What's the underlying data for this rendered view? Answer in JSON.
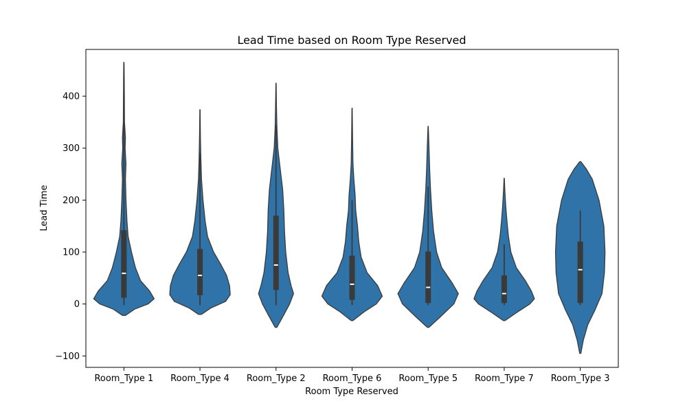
{
  "chart_data": {
    "type": "violin",
    "title": "Lead Time based on Room Type Reserved",
    "xlabel": "Room Type Reserved",
    "ylabel": "Lead Time",
    "ylim": [
      -122,
      490
    ],
    "yticks": [
      -100,
      0,
      100,
      200,
      300,
      400
    ],
    "grid": false,
    "colors": {
      "violin_fill": "#2f73a8",
      "violin_edge": "#3a3a3a",
      "box": "#3a3a3a",
      "median": "#ffffff"
    },
    "categories": [
      "Room_Type 1",
      "Room_Type 4",
      "Room_Type 2",
      "Room_Type 6",
      "Room_Type 5",
      "Room_Type 7",
      "Room_Type 3"
    ],
    "violins": [
      {
        "category": "Room_Type 1",
        "min": -22,
        "max": 465,
        "q1": 12,
        "median": 59,
        "q3": 142,
        "whisker_low": -2,
        "whisker_high": 400,
        "profile": [
          [
            -22,
            0.05
          ],
          [
            -10,
            0.35
          ],
          [
            0,
            0.8
          ],
          [
            10,
            1.0
          ],
          [
            25,
            0.85
          ],
          [
            45,
            0.55
          ],
          [
            70,
            0.38
          ],
          [
            100,
            0.25
          ],
          [
            130,
            0.14
          ],
          [
            160,
            0.1
          ],
          [
            200,
            0.07
          ],
          [
            240,
            0.05
          ],
          [
            270,
            0.07
          ],
          [
            300,
            0.04
          ],
          [
            320,
            0.05
          ],
          [
            350,
            0.02
          ],
          [
            400,
            0.015
          ],
          [
            440,
            0.01
          ],
          [
            465,
            0.005
          ]
        ]
      },
      {
        "category": "Room_Type 4",
        "min": -20,
        "max": 374,
        "q1": 17,
        "median": 55,
        "q3": 106,
        "whisker_low": -2,
        "whisker_high": 290,
        "profile": [
          [
            -20,
            0.05
          ],
          [
            -8,
            0.35
          ],
          [
            5,
            0.85
          ],
          [
            18,
            1.0
          ],
          [
            35,
            0.98
          ],
          [
            55,
            0.88
          ],
          [
            75,
            0.7
          ],
          [
            100,
            0.45
          ],
          [
            130,
            0.25
          ],
          [
            160,
            0.17
          ],
          [
            200,
            0.1
          ],
          [
            240,
            0.05
          ],
          [
            280,
            0.03
          ],
          [
            320,
            0.015
          ],
          [
            374,
            0.005
          ]
        ]
      },
      {
        "category": "Room_Type 2",
        "min": -45,
        "max": 425,
        "q1": 27,
        "median": 75,
        "q3": 170,
        "whisker_low": -2,
        "whisker_high": 345,
        "profile": [
          [
            -45,
            0.03
          ],
          [
            -25,
            0.22
          ],
          [
            0,
            0.45
          ],
          [
            20,
            0.58
          ],
          [
            35,
            0.5
          ],
          [
            60,
            0.4
          ],
          [
            100,
            0.32
          ],
          [
            140,
            0.28
          ],
          [
            180,
            0.26
          ],
          [
            220,
            0.22
          ],
          [
            260,
            0.14
          ],
          [
            300,
            0.06
          ],
          [
            340,
            0.03
          ],
          [
            380,
            0.015
          ],
          [
            425,
            0.005
          ]
        ]
      },
      {
        "category": "Room_Type 6",
        "min": -32,
        "max": 377,
        "q1": 8,
        "median": 38,
        "q3": 93,
        "whisker_low": -2,
        "whisker_high": 200,
        "profile": [
          [
            -32,
            0.03
          ],
          [
            -15,
            0.4
          ],
          [
            0,
            0.8
          ],
          [
            15,
            1.0
          ],
          [
            35,
            0.85
          ],
          [
            60,
            0.5
          ],
          [
            90,
            0.3
          ],
          [
            120,
            0.22
          ],
          [
            150,
            0.18
          ],
          [
            180,
            0.12
          ],
          [
            210,
            0.1
          ],
          [
            240,
            0.06
          ],
          [
            270,
            0.03
          ],
          [
            320,
            0.015
          ],
          [
            377,
            0.005
          ]
        ]
      },
      {
        "category": "Room_Type 5",
        "min": -45,
        "max": 342,
        "q1": 2,
        "median": 32,
        "q3": 101,
        "whisker_low": -2,
        "whisker_high": 226,
        "profile": [
          [
            -45,
            0.03
          ],
          [
            -25,
            0.4
          ],
          [
            0,
            0.85
          ],
          [
            20,
            1.0
          ],
          [
            40,
            0.8
          ],
          [
            70,
            0.45
          ],
          [
            100,
            0.28
          ],
          [
            140,
            0.18
          ],
          [
            180,
            0.12
          ],
          [
            220,
            0.08
          ],
          [
            260,
            0.05
          ],
          [
            300,
            0.03
          ],
          [
            342,
            0.005
          ]
        ]
      },
      {
        "category": "Room_Type 7",
        "min": -32,
        "max": 242,
        "q1": 2,
        "median": 20,
        "q3": 55,
        "whisker_low": -2,
        "whisker_high": 115,
        "profile": [
          [
            -32,
            0.03
          ],
          [
            -15,
            0.45
          ],
          [
            0,
            0.85
          ],
          [
            10,
            1.0
          ],
          [
            25,
            0.9
          ],
          [
            45,
            0.7
          ],
          [
            70,
            0.4
          ],
          [
            100,
            0.22
          ],
          [
            130,
            0.14
          ],
          [
            160,
            0.09
          ],
          [
            190,
            0.05
          ],
          [
            220,
            0.02
          ],
          [
            242,
            0.005
          ]
        ]
      },
      {
        "category": "Room_Type 3",
        "min": -95,
        "max": 274,
        "q1": 2,
        "median": 66,
        "q3": 120,
        "whisker_low": -2,
        "whisker_high": 180,
        "profile": [
          [
            -95,
            0.02
          ],
          [
            -70,
            0.1
          ],
          [
            -40,
            0.25
          ],
          [
            -10,
            0.5
          ],
          [
            20,
            0.72
          ],
          [
            60,
            0.8
          ],
          [
            100,
            0.82
          ],
          [
            150,
            0.78
          ],
          [
            200,
            0.62
          ],
          [
            240,
            0.4
          ],
          [
            260,
            0.2
          ],
          [
            274,
            0.02
          ]
        ]
      }
    ]
  }
}
